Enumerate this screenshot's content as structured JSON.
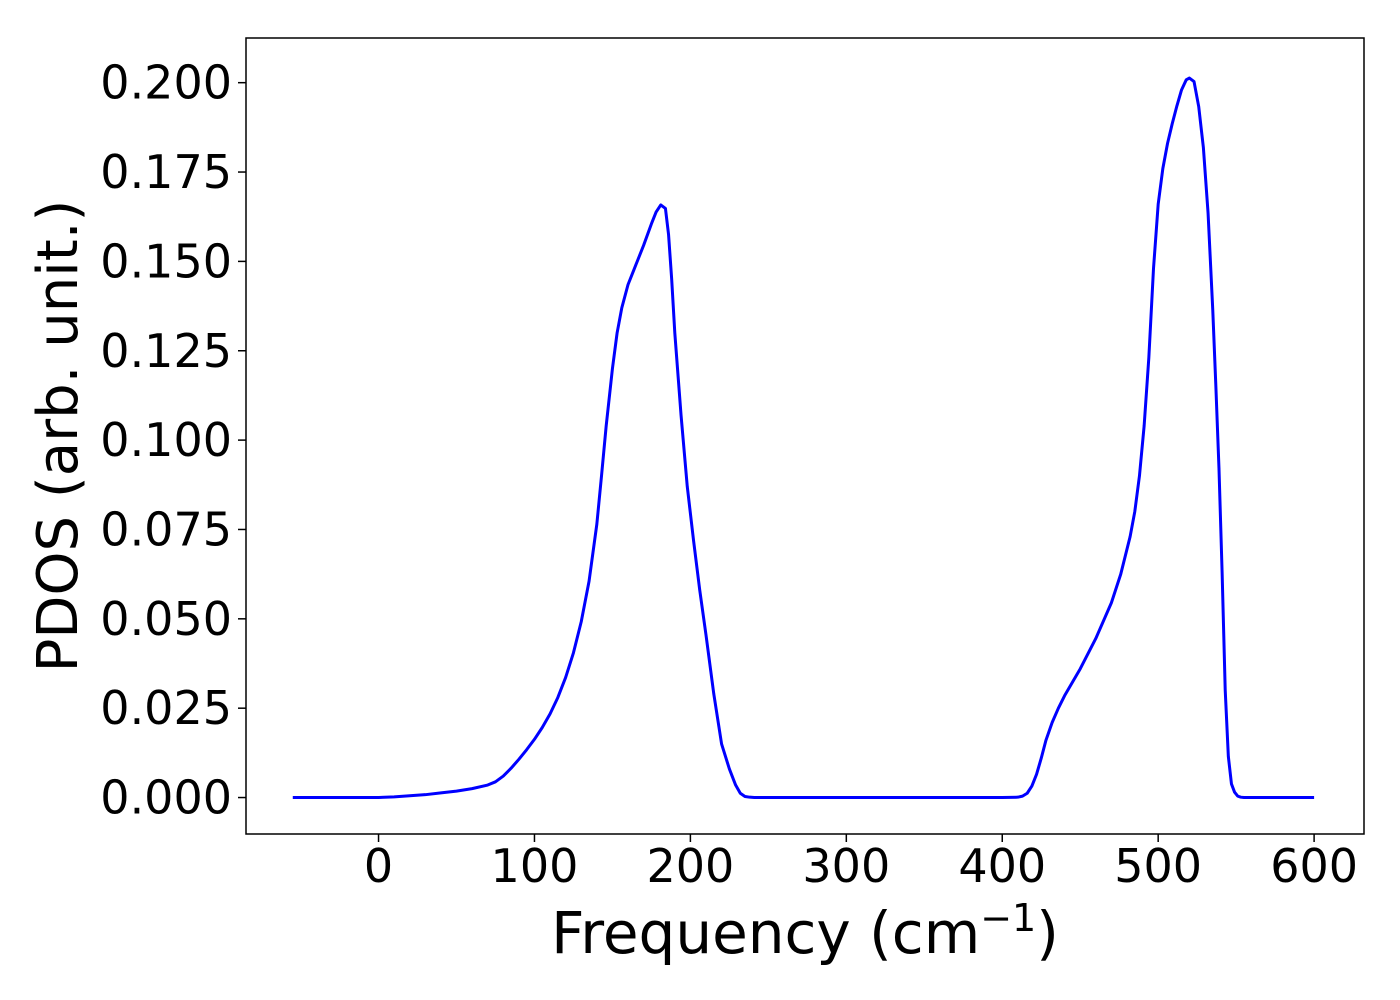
{
  "chart_data": {
    "type": "line",
    "title": "",
    "xlabel": "Frequency (cm",
    "xlabel_sup": "−1",
    "xlabel_close": ")",
    "ylabel": "PDOS (arb. unit.)",
    "xlim": [
      -85,
      632
    ],
    "ylim": [
      -0.0102,
      0.2125
    ],
    "xticks": [
      0,
      100,
      200,
      300,
      400,
      500,
      600
    ],
    "xtick_labels": [
      "0",
      "100",
      "200",
      "300",
      "400",
      "500",
      "600"
    ],
    "yticks": [
      0.0,
      0.025,
      0.05,
      0.075,
      0.1,
      0.125,
      0.15,
      0.175,
      0.2
    ],
    "ytick_labels": [
      "0.000",
      "0.025",
      "0.050",
      "0.075",
      "0.100",
      "0.125",
      "0.150",
      "0.175",
      "0.200"
    ],
    "grid": false,
    "line_color": "#0000ff",
    "series": [
      {
        "x": [
          -55,
          0,
          10,
          20,
          30,
          40,
          50,
          60,
          70,
          75,
          80,
          85,
          90,
          95,
          100,
          105,
          110,
          115,
          120,
          125,
          130,
          135,
          140,
          143,
          146,
          150,
          153,
          156,
          160,
          165,
          170,
          175,
          178,
          181,
          184,
          186,
          188,
          190,
          194,
          198,
          202,
          206,
          210,
          215,
          220,
          225,
          229,
          232,
          235,
          238,
          241,
          245,
          250,
          300,
          350,
          400,
          410,
          413,
          416,
          419,
          422,
          425,
          428,
          432,
          436,
          440,
          450,
          460,
          470,
          476,
          482,
          485,
          488,
          491,
          494,
          497,
          500,
          503,
          506,
          509,
          512,
          515,
          518,
          520,
          523,
          526,
          529,
          532,
          535,
          537,
          539,
          541,
          543,
          545,
          547,
          549,
          551,
          553,
          555,
          558,
          562,
          600
        ],
        "y": [
          0.0,
          0.0,
          0.0002,
          0.0005,
          0.0008,
          0.0013,
          0.0018,
          0.0025,
          0.0035,
          0.0044,
          0.006,
          0.0082,
          0.0107,
          0.0134,
          0.0163,
          0.0196,
          0.0234,
          0.028,
          0.0336,
          0.0405,
          0.0492,
          0.0605,
          0.0765,
          0.09,
          0.104,
          0.12,
          0.13,
          0.137,
          0.1435,
          0.149,
          0.1545,
          0.1605,
          0.1638,
          0.1658,
          0.1648,
          0.1575,
          0.145,
          0.13,
          0.107,
          0.087,
          0.072,
          0.058,
          0.0455,
          0.029,
          0.015,
          0.008,
          0.0035,
          0.0012,
          0.0003,
          0.0001,
          0.0,
          0.0,
          0.0,
          0.0,
          0.0,
          0.0,
          0.0001,
          0.0004,
          0.0012,
          0.0032,
          0.0065,
          0.011,
          0.016,
          0.021,
          0.025,
          0.0285,
          0.036,
          0.0445,
          0.0545,
          0.0625,
          0.073,
          0.08,
          0.09,
          0.104,
          0.123,
          0.148,
          0.166,
          0.176,
          0.183,
          0.1885,
          0.1935,
          0.198,
          0.2008,
          0.2013,
          0.2003,
          0.1933,
          0.1818,
          0.1635,
          0.1365,
          0.115,
          0.092,
          0.063,
          0.03,
          0.0115,
          0.0038,
          0.0015,
          0.0004,
          0.0001,
          0.0,
          0.0,
          0.0,
          0.0
        ]
      }
    ]
  }
}
